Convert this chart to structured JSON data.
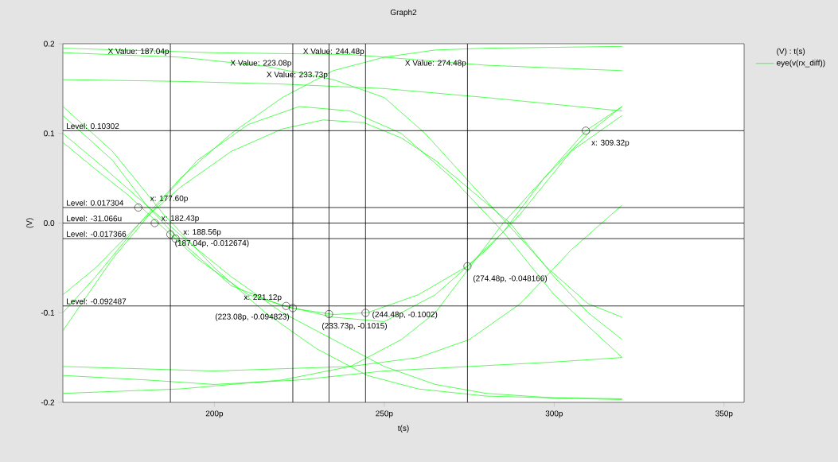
{
  "chart_data": {
    "type": "line",
    "title": "Graph2",
    "xlabel": "t(s)",
    "ylabel": "(V)",
    "legend_title": "(V) : t(s)",
    "legend": "right",
    "xlim": [
      155.4,
      355.9
    ],
    "ylim": [
      -0.2,
      0.2
    ],
    "xticks": [
      {
        "value": 200,
        "label": "200p"
      },
      {
        "value": 250,
        "label": "250p"
      },
      {
        "value": 300,
        "label": "300p"
      },
      {
        "value": 350,
        "label": "350p"
      }
    ],
    "yticks": [
      -0.2,
      -0.1,
      {
        "value": 0,
        "label": "0.0"
      },
      0.1,
      0.2
    ],
    "series": [
      {
        "name": "eye(v(rx_diff))",
        "color": "#00ff00",
        "x": [
          155.4,
          165,
          175,
          182,
          195,
          210,
          223,
          235,
          245,
          260,
          274.5,
          285,
          297,
          309.3,
          320
        ],
        "values": [
          0.09,
          0.06,
          0.03,
          0.005,
          -0.04,
          -0.08,
          -0.095,
          -0.102,
          -0.1,
          -0.08,
          -0.048,
          -0.01,
          0.05,
          0.103,
          0.13
        ]
      },
      {
        "color": "#00ff00",
        "x": [
          155.4,
          170,
          180,
          190,
          205,
          220,
          235,
          250,
          265,
          280,
          290,
          305,
          320
        ],
        "values": [
          0.12,
          0.07,
          0.02,
          -0.02,
          -0.07,
          -0.092,
          -0.105,
          -0.11,
          -0.08,
          -0.03,
          0.01,
          0.08,
          0.12
        ]
      },
      {
        "color": "#00ff00",
        "x": [
          155.4,
          170,
          185,
          200,
          215,
          230,
          245,
          260,
          280,
          300,
          320
        ],
        "values": [
          0.13,
          0.08,
          0.01,
          -0.05,
          -0.1,
          -0.14,
          -0.17,
          -0.185,
          -0.193,
          -0.195,
          -0.196
        ]
      },
      {
        "color": "#00ff00",
        "x": [
          155.4,
          165,
          178,
          190,
          205,
          220,
          235,
          250,
          265,
          280,
          300,
          320
        ],
        "values": [
          -0.08,
          -0.05,
          0.0,
          0.05,
          0.1,
          0.14,
          0.17,
          0.185,
          0.193,
          0.195,
          0.196,
          0.197
        ]
      },
      {
        "color": "#00ff00",
        "x": [
          155.4,
          165,
          178,
          190,
          205,
          220,
          232,
          244,
          255,
          265,
          276,
          287,
          300,
          310,
          320
        ],
        "values": [
          -0.1,
          -0.06,
          0.0,
          0.04,
          0.08,
          0.105,
          0.115,
          0.112,
          0.095,
          0.07,
          0.035,
          0.0,
          -0.06,
          -0.1,
          -0.13
        ]
      },
      {
        "color": "#00ff00",
        "x": [
          155.4,
          170,
          181,
          195,
          210,
          225,
          240,
          255,
          270,
          285,
          300,
          320
        ],
        "values": [
          -0.12,
          -0.04,
          0.01,
          0.07,
          0.11,
          0.13,
          0.125,
          0.1,
          0.05,
          -0.01,
          -0.08,
          -0.15
        ]
      },
      {
        "color": "#00ff00",
        "x": [
          155.4,
          180,
          200,
          225,
          250,
          275,
          300,
          320
        ],
        "values": [
          -0.17,
          -0.175,
          -0.18,
          -0.175,
          -0.165,
          -0.16,
          -0.155,
          -0.15
        ]
      },
      {
        "color": "#00ff00",
        "x": [
          155.4,
          190,
          220,
          250,
          280,
          320
        ],
        "values": [
          0.16,
          0.158,
          0.155,
          0.15,
          0.14,
          0.125
        ]
      },
      {
        "color": "#00ff00",
        "x": [
          155.4,
          200,
          240,
          280,
          320
        ],
        "values": [
          0.195,
          0.19,
          0.188,
          0.176,
          0.17
        ]
      },
      {
        "color": "#00ff00",
        "x": [
          155.4,
          190,
          215,
          235,
          250,
          262,
          274,
          286,
          298,
          310,
          320
        ],
        "values": [
          0.19,
          0.185,
          0.175,
          0.16,
          0.14,
          0.1,
          0.05,
          0.0,
          -0.05,
          -0.09,
          -0.105
        ]
      },
      {
        "color": "#00ff00",
        "x": [
          155.4,
          190,
          220,
          240,
          255,
          265,
          275,
          285,
          297,
          310,
          320
        ],
        "values": [
          -0.19,
          -0.185,
          -0.175,
          -0.16,
          -0.13,
          -0.1,
          -0.05,
          0.0,
          0.05,
          0.1,
          0.13
        ]
      },
      {
        "color": "#00ff00",
        "x": [
          155.4,
          168,
          180,
          192,
          205,
          220,
          235,
          250,
          265,
          280,
          300,
          320
        ],
        "values": [
          0.1,
          0.06,
          0.02,
          -0.02,
          -0.06,
          -0.1,
          -0.13,
          -0.16,
          -0.18,
          -0.19,
          -0.195,
          -0.197
        ]
      },
      {
        "color": "#00ff00",
        "x": [
          155.4,
          200,
          240,
          260,
          275,
          290,
          305,
          320
        ],
        "values": [
          -0.16,
          -0.165,
          -0.16,
          -0.15,
          -0.13,
          -0.09,
          -0.03,
          0.02
        ]
      }
    ],
    "ref_lines": [
      {
        "axis": "x",
        "value": 187.04,
        "label": "X Value: 187.04p",
        "color": "#000000"
      },
      {
        "axis": "x",
        "value": 223.08,
        "label": "X Value: 223.08p",
        "color": "#000000"
      },
      {
        "axis": "x",
        "value": 233.73,
        "label": "X Value: 233.73p",
        "color": "#000000"
      },
      {
        "axis": "x",
        "value": 244.48,
        "label": "X Value: 244.48p",
        "color": "#000000"
      },
      {
        "axis": "x",
        "value": 274.48,
        "label": "X Value: 274.48p",
        "color": "#000000"
      },
      {
        "axis": "y",
        "value": 0.10302,
        "label": "Level: 0.10302",
        "color": "#000000"
      },
      {
        "axis": "y",
        "value": 0.017304,
        "label": "Level: 0.017304",
        "color": "#000000"
      },
      {
        "axis": "y",
        "value": -3.1066e-05,
        "label": "Level: -31.066u",
        "color": "#000000"
      },
      {
        "axis": "y",
        "value": -0.017366,
        "label": "Level: -0.017366",
        "color": "#000000"
      },
      {
        "axis": "y",
        "value": -0.092487,
        "label": "Level: -0.092487",
        "color": "#000000"
      }
    ],
    "annotations": [
      {
        "text": "x: 177.60p",
        "x": 177.6,
        "y": 0.017304
      },
      {
        "text": "x: 182.43p",
        "x": 182.43,
        "y": -3.1066e-05
      },
      {
        "text": "x: 188.56p",
        "x": 188.56,
        "y": -0.017366
      },
      {
        "text": "(187.04p, -0.012674)",
        "x": 187.04,
        "y": -0.012674
      },
      {
        "text": "x: 221.12p",
        "x": 221.12,
        "y": -0.092487
      },
      {
        "text": "(223.08p, -0.094823)",
        "x": 223.08,
        "y": -0.094823
      },
      {
        "text": "(233.73p, -0.1015)",
        "x": 233.73,
        "y": -0.1015
      },
      {
        "text": "(244.48p, -0.1002)",
        "x": 244.48,
        "y": -0.1002
      },
      {
        "text": "(274.48p, -0.048166)",
        "x": 274.48,
        "y": -0.048166
      },
      {
        "text": "x: 309.32p",
        "x": 309.32,
        "y": 0.10302
      }
    ]
  }
}
